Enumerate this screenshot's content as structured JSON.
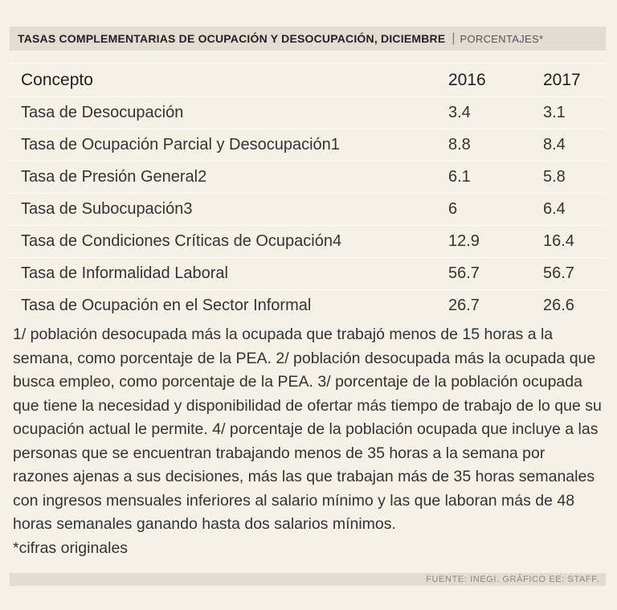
{
  "header": {
    "title": "TASAS COMPLEMENTARIAS DE OCUPACIÓN Y DESOCUPACIÓN, DICIEMBRE",
    "separator": "|",
    "subtitle": "PORCENTAJES*"
  },
  "chart_data": {
    "type": "table",
    "columns": [
      "Concepto",
      "2016",
      "2017"
    ],
    "rows": [
      {
        "concepto": "Tasa de Desocupación",
        "v2016": "3.4",
        "v2017": "3.1"
      },
      {
        "concepto": "Tasa de Ocupación Parcial y Desocupación1",
        "v2016": "8.8",
        "v2017": "8.4"
      },
      {
        "concepto": "Tasa de Presión General2",
        "v2016": "6.1",
        "v2017": "5.8"
      },
      {
        "concepto": "Tasa de Subocupación3",
        "v2016": "6",
        "v2017": "6.4"
      },
      {
        "concepto": "Tasa de Condiciones Críticas de Ocupación4",
        "v2016": "12.9",
        "v2017": "16.4"
      },
      {
        "concepto": "Tasa de Informalidad Laboral",
        "v2016": "56.7",
        "v2017": "56.7"
      },
      {
        "concepto": "Tasa de Ocupación en el Sector Informal",
        "v2016": "26.7",
        "v2017": "26.6"
      }
    ]
  },
  "notes": {
    "text": "1/ población desocupada más la ocupada que trabajó menos de 15 horas a la semana, como porcentaje de la PEA. 2/ población desocupada más la ocupada que busca empleo, como porcentaje de la PEA. 3/ porcentaje de la población ocupada que tiene la necesidad y disponibilidad de ofertar más tiempo de trabajo de lo que su ocupación actual le permite. 4/ porcentaje de la población ocupada que incluye a las personas que se encuentran trabajando menos de 35 horas a la semana por razones ajenas a sus decisiones, más las que trabajan más de 35 horas semanales con ingresos mensuales inferiores al salario mínimo y las que laboran más de 48 horas semanales ganando hasta dos salarios mínimos.",
    "footnote": "*cifras originales"
  },
  "source": "FUENTE: INEGI. GRÁFICO EE: STAFF."
}
